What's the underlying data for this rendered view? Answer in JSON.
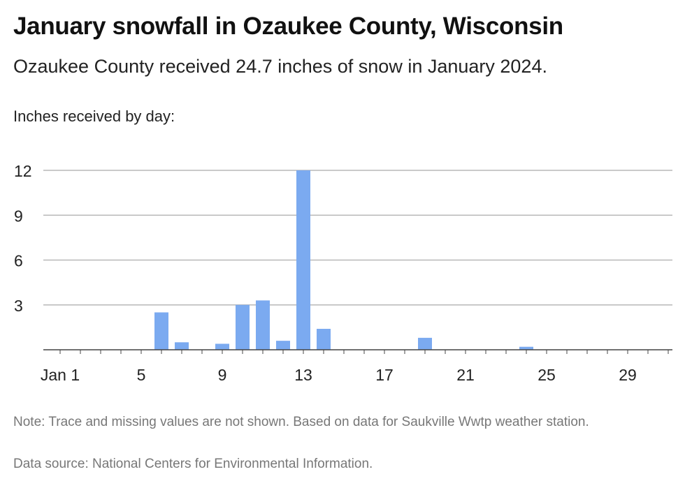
{
  "header": {
    "title": "January snowfall in Ozaukee County, Wisconsin",
    "subtitle": "Ozaukee County received 24.7 inches of snow in January 2024.",
    "chart_label": "Inches received by day:"
  },
  "footer": {
    "note": "Note: Trace and missing values are not shown. Based on data for Saukville Wwtp weather station.",
    "source": "Data source: National Centers for Environmental Information."
  },
  "colors": {
    "bar": "#7baaf0",
    "grid": "#b8b8b8",
    "axis": "#444444"
  },
  "chart_data": {
    "type": "bar",
    "title": "January snowfall in Ozaukee County, Wisconsin",
    "xlabel": "",
    "ylabel": "Inches received by day:",
    "ylim": [
      0,
      12
    ],
    "y_ticks": [
      3,
      6,
      9,
      12
    ],
    "x_tick_days": [
      1,
      5,
      9,
      13,
      17,
      21,
      25,
      29
    ],
    "x_tick_labels": [
      "Jan 1",
      "5",
      "9",
      "13",
      "17",
      "21",
      "25",
      "29"
    ],
    "grid": true,
    "categories": [
      "Jan 6",
      "Jan 7",
      "Jan 9",
      "Jan 10",
      "Jan 11",
      "Jan 12",
      "Jan 13",
      "Jan 14",
      "Jan 19",
      "Jan 24"
    ],
    "days": [
      6,
      7,
      9,
      10,
      11,
      12,
      13,
      14,
      19,
      24
    ],
    "values": [
      2.5,
      0.5,
      0.4,
      3.0,
      3.3,
      0.6,
      12.0,
      1.4,
      0.8,
      0.2
    ]
  }
}
